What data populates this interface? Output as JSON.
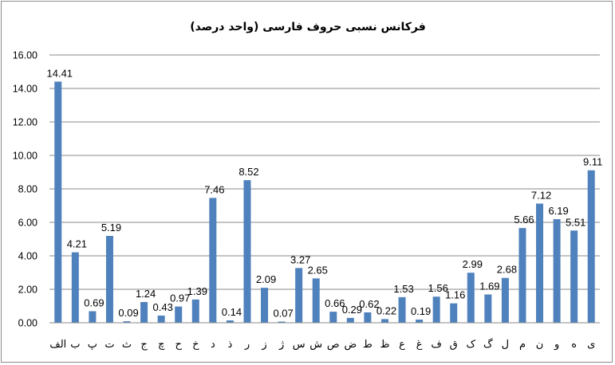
{
  "chart_data": {
    "type": "bar",
    "title": "فرکانس نسبی حروف فارسی (واحد درصد)",
    "categories": [
      "الف",
      "ب",
      "پ",
      "ت",
      "ث",
      "ج",
      "چ",
      "ح",
      "خ",
      "د",
      "ذ",
      "ر",
      "ز",
      "ژ",
      "س",
      "ش",
      "ص",
      "ض",
      "ط",
      "ظ",
      "ع",
      "غ",
      "ف",
      "ق",
      "ک",
      "گ",
      "ل",
      "م",
      "ن",
      "و",
      "ه",
      "ی"
    ],
    "values": [
      14.41,
      4.21,
      0.69,
      5.19,
      0.09,
      1.24,
      0.43,
      0.97,
      1.39,
      7.46,
      0.14,
      8.52,
      2.09,
      0.07,
      3.27,
      2.65,
      0.66,
      0.29,
      0.62,
      0.22,
      1.53,
      0.19,
      1.56,
      1.16,
      2.99,
      1.69,
      2.68,
      5.66,
      7.12,
      6.19,
      5.51,
      9.11
    ],
    "value_labels": [
      "14.41",
      "4.21",
      "0.69",
      "5.19",
      "0.09",
      "1.24",
      "0.43",
      "0.97",
      "1.39",
      "7.46",
      "0.14",
      "8.52",
      "2.09",
      "0.07",
      "3.27",
      "2.65",
      "0.66",
      "0.29",
      "0.62",
      "0.22",
      "1.53",
      "0.19",
      "1.56",
      "1.16",
      "2.99",
      "1.69",
      "2.68",
      "5.66",
      "7.12",
      "6.19",
      "5.51",
      "9.11"
    ],
    "yticks": [
      "0.00",
      "2.00",
      "4.00",
      "6.00",
      "8.00",
      "10.00",
      "12.00",
      "14.00",
      "16.00"
    ],
    "ylim": [
      0,
      16
    ],
    "grid": true,
    "legend": "none",
    "bar_color": "#4f81bd"
  }
}
